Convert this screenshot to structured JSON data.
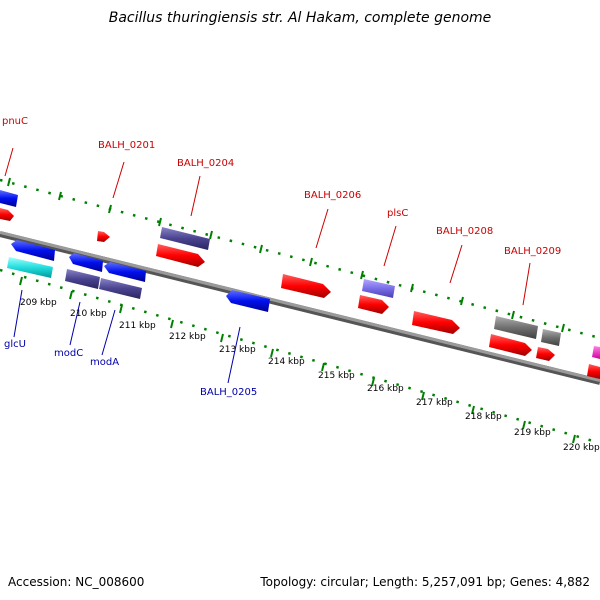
{
  "title": "Bacillus thuringiensis str. Al Hakam, complete genome",
  "accession": "Accession: NC_008600",
  "summary": "Topology: circular; Length: 5,257,091 bp; Genes: 4,882",
  "kbp_ticks": [
    "209 kbp",
    "210 kbp",
    "211 kbp",
    "212 kbp",
    "213 kbp",
    "214 kbp",
    "215 kbp",
    "216 kbp",
    "217 kbp",
    "218 kbp",
    "219 kbp",
    "220 kbp"
  ],
  "top_labels": [
    "pnuC",
    "BALH_0201",
    "BALH_0204",
    "BALH_0206",
    "plsC",
    "BALH_0208",
    "BALH_0209"
  ],
  "bottom_labels": [
    "glcU",
    "modC",
    "modA",
    "BALH_0205"
  ],
  "colors": {
    "forward_cds": "#e00000",
    "reverse_cds": "#0000dd",
    "label_top": "#cc0000",
    "label_bottom": "#0000aa",
    "backbone": "#7a7a7a",
    "tick_dots": "#008000"
  }
}
